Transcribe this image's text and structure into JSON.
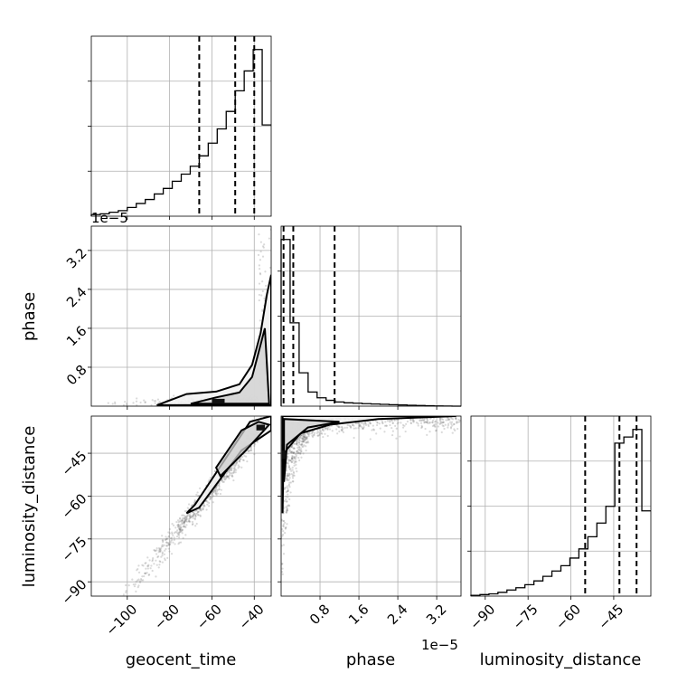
{
  "chart_data": {
    "type": "corner",
    "parameters": [
      {
        "name": "geocent_time",
        "label": "geocent_time"
      },
      {
        "name": "phase",
        "label": "phase"
      },
      {
        "name": "luminosity_distance",
        "label": "luminosity_distance"
      }
    ],
    "axes": {
      "geocent_time": {
        "range": [
          -117,
          -32
        ],
        "ticks": [
          -100,
          -80,
          -60,
          -40
        ],
        "tick_labels": [
          "−100",
          "−80",
          "−60",
          "−40"
        ]
      },
      "phase": {
        "range": [
          0,
          3.7
        ],
        "ticks": [
          0.8,
          1.6,
          2.4,
          3.2
        ],
        "tick_labels": [
          "0.8",
          "1.6",
          "2.4",
          "3.2"
        ],
        "offset_text": "1e−5"
      },
      "luminosity_distance": {
        "range": [
          -95,
          -32
        ],
        "ticks": [
          -90,
          -75,
          -60,
          -45
        ],
        "tick_labels": [
          "−90",
          "−75",
          "−60",
          "−45"
        ]
      }
    },
    "histograms": {
      "geocent_time": {
        "bin_edges": [
          -117,
          -112.75,
          -108.5,
          -104.25,
          -100,
          -95.75,
          -91.5,
          -87.25,
          -83,
          -78.75,
          -74.5,
          -70.25,
          -66,
          -61.75,
          -57.5,
          -53.25,
          -49,
          -44.75,
          -40.5,
          -36.25,
          -32
        ],
        "counts": [
          0.2,
          0.3,
          0.5,
          0.7,
          1.1,
          1.6,
          2.1,
          2.8,
          3.5,
          4.4,
          5.3,
          6.3,
          7.6,
          9.2,
          11.0,
          13.2,
          15.8,
          18.3,
          21.0,
          11.5
        ],
        "quantiles": [
          -66,
          -49,
          -40
        ]
      },
      "phase": {
        "bin_edges": [
          0,
          0.185,
          0.37,
          0.555,
          0.74,
          0.925,
          1.11,
          1.295,
          1.48,
          1.665,
          1.85,
          2.035,
          2.22,
          2.405,
          2.59,
          2.775,
          2.96,
          3.145,
          3.33,
          3.515,
          3.7
        ],
        "counts": [
          200,
          100,
          40,
          17,
          10,
          7,
          5,
          4,
          3.5,
          3,
          2.6,
          2.2,
          1.8,
          1.4,
          1.1,
          0.8,
          0.5,
          0.3,
          0.1,
          0
        ],
        "quantiles": [
          0.05,
          0.25,
          1.1
        ]
      },
      "luminosity_distance": {
        "bin_edges": [
          -95,
          -91.85,
          -88.7,
          -85.55,
          -82.4,
          -79.25,
          -76.1,
          -72.95,
          -69.8,
          -66.65,
          -63.5,
          -60.35,
          -57.2,
          -54.05,
          -50.9,
          -47.75,
          -44.6,
          -41.45,
          -38.3,
          -35.15,
          -32
        ],
        "counts": [
          0.1,
          0.2,
          0.3,
          0.5,
          0.8,
          1.1,
          1.5,
          2,
          2.6,
          3.3,
          4,
          5,
          6.2,
          7.8,
          9.6,
          11.8,
          20.1,
          20.9,
          21.9,
          11.2
        ],
        "quantiles": [
          -55,
          -43,
          -37
        ]
      }
    },
    "pairs": [
      {
        "x": "geocent_time",
        "y": "phase",
        "trend": "phase rises sharply as geocent_time approaches −32"
      },
      {
        "x": "geocent_time",
        "y": "luminosity_distance",
        "trend": "linear positive correlation"
      },
      {
        "x": "phase",
        "y": "luminosity_distance",
        "trend": "luminosity_distance rises steeply at small phase then saturates near −32"
      }
    ]
  }
}
